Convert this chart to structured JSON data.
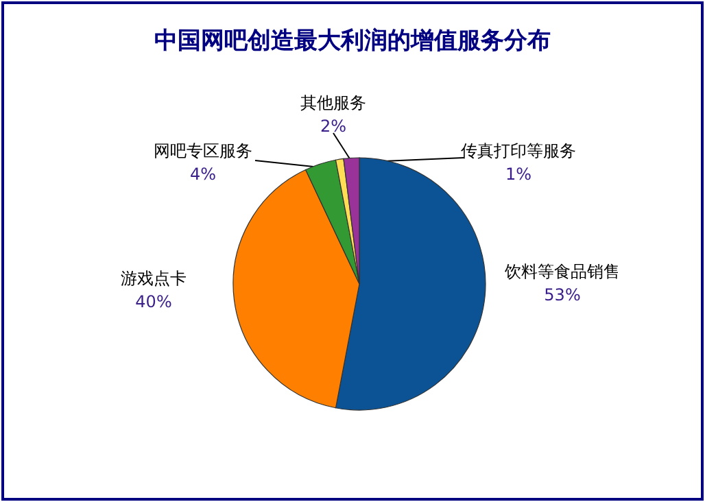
{
  "chart_data": {
    "type": "pie",
    "title": "中国网吧创造最大利润的增值服务分布",
    "categories": [
      "饮料等食品销售",
      "游戏点卡",
      "网吧专区服务",
      "传真打印等服务",
      "其他服务"
    ],
    "values": [
      53,
      40,
      4,
      1,
      2
    ],
    "colors": [
      "#0b5394",
      "#ff8000",
      "#339933",
      "#ffdd55",
      "#993399"
    ],
    "value_labels": [
      "53%",
      "40%",
      "4%",
      "1%",
      "2%"
    ]
  }
}
